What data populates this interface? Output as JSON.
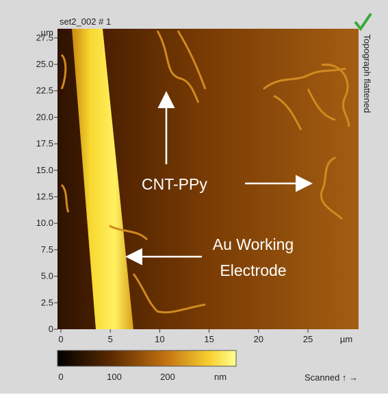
{
  "header": {
    "title": "set2_002 # 1",
    "side_label": "Topograph flattened"
  },
  "y_axis": {
    "unit": "µm",
    "ticks": [
      "0",
      "2.5",
      "5.0",
      "7.5",
      "10.0",
      "12.5",
      "15.0",
      "17.5",
      "20.0",
      "22.5",
      "25.0",
      "27.5"
    ]
  },
  "x_axis": {
    "unit": "µm",
    "ticks": [
      "0",
      "5",
      "10",
      "15",
      "20",
      "25"
    ]
  },
  "colorbar": {
    "unit": "nm",
    "ticks": [
      "0",
      "100",
      "200"
    ]
  },
  "footer": {
    "scanned": "Scanned ↑ →"
  },
  "annotations": {
    "cnt": "CNT-PPy",
    "electrode": [
      "Au Working",
      "Electrode"
    ]
  }
}
